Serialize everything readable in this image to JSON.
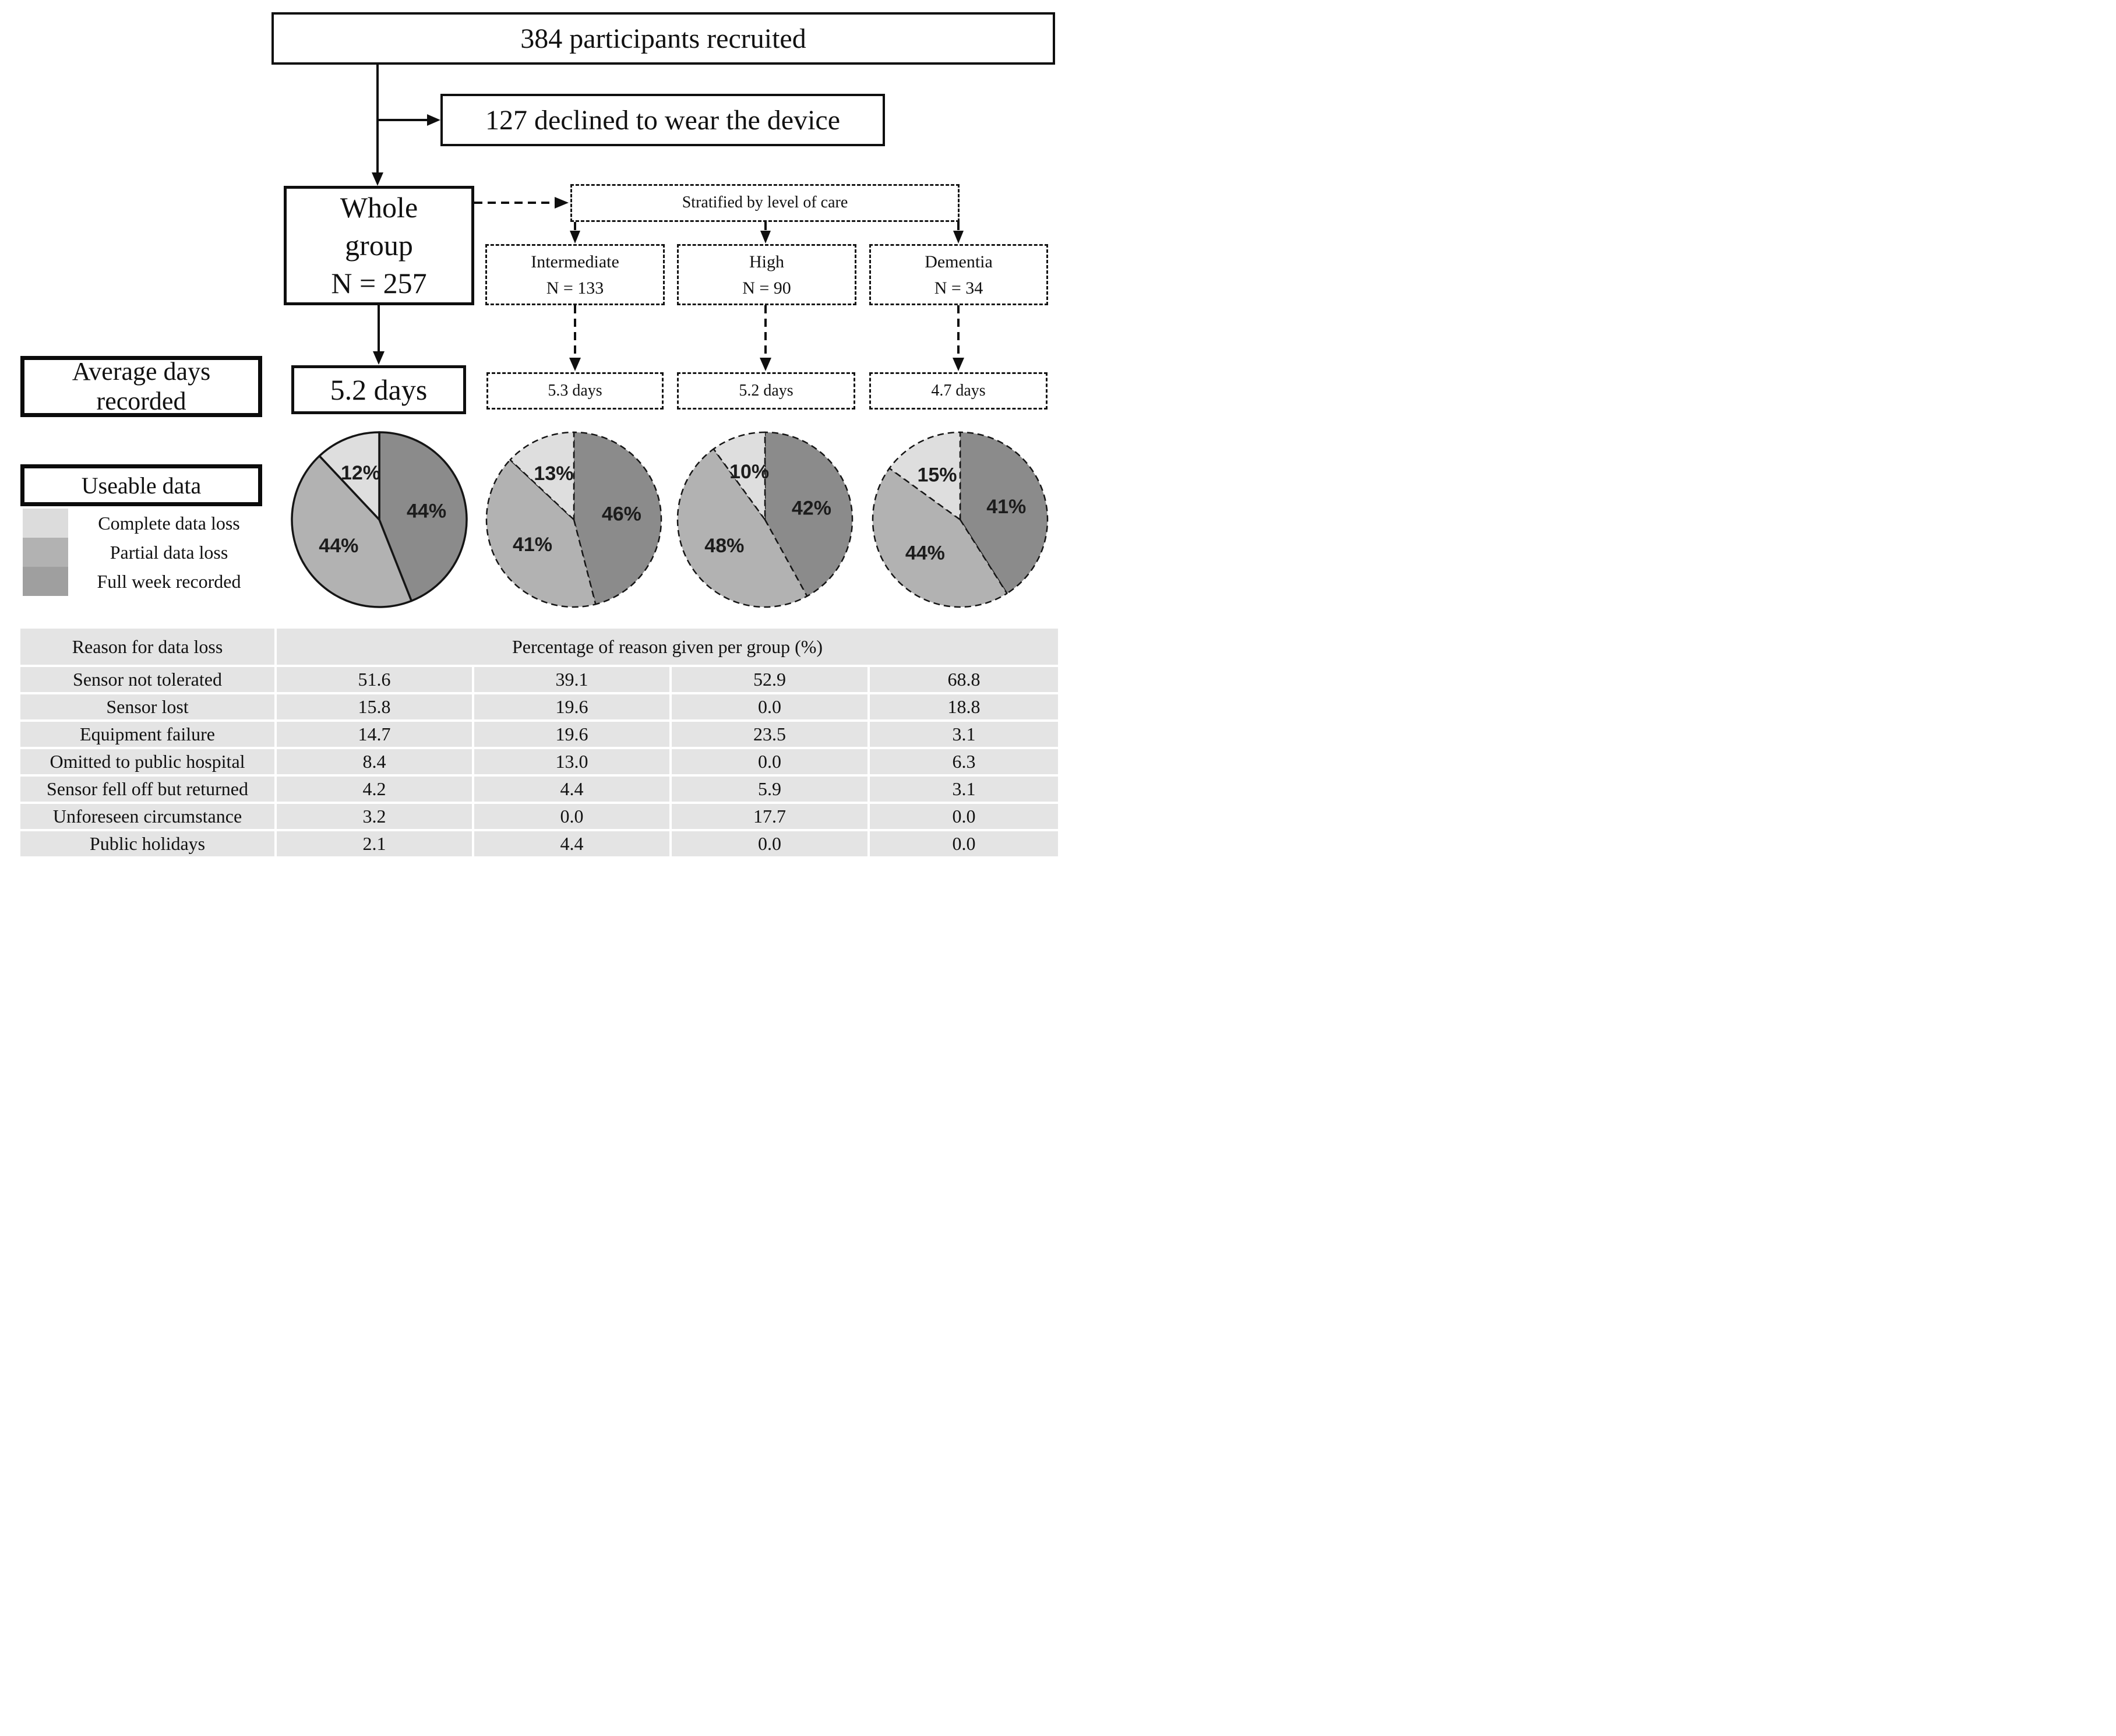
{
  "flowchart": {
    "recruited": "384 participants recruited",
    "declined": "127 declined to wear the device",
    "whole_group_lines": [
      "Whole",
      "group",
      "N = 257"
    ],
    "stratified_label": "Stratified by level of care",
    "groups": [
      {
        "name": "Intermediate",
        "n_label": "N = 133"
      },
      {
        "name": "High",
        "n_label": "N = 90"
      },
      {
        "name": "Dementia",
        "n_label": "N = 34"
      }
    ],
    "average_days_label_lines": [
      "Average days",
      "recorded"
    ],
    "average_days": [
      "5.2 days",
      "5.3 days",
      "5.2 days",
      "4.7 days"
    ],
    "useable_data_label": "Useable data"
  },
  "legend": {
    "items": [
      {
        "label": "Complete data loss",
        "color": "#dcdcdc"
      },
      {
        "label": "Partial data loss",
        "color": "#b2b2b2"
      },
      {
        "label": "Full week recorded",
        "color": "#9f9f9f"
      }
    ]
  },
  "chart_data": [
    {
      "type": "pie",
      "title": "Whole group",
      "border_style": "solid",
      "categories": [
        "Full week recorded",
        "Partial data loss",
        "Complete data loss"
      ],
      "values": [
        44,
        44,
        12
      ],
      "value_labels": [
        "44%",
        "44%",
        "12%"
      ],
      "colors": [
        "#8b8b8b",
        "#b2b2b2",
        "#dedede"
      ],
      "start_angle": 0,
      "direction": "clockwise",
      "legend_position": "left"
    },
    {
      "type": "pie",
      "title": "Intermediate",
      "border_style": "dashed",
      "categories": [
        "Full week recorded",
        "Partial data loss",
        "Complete data loss"
      ],
      "values": [
        46,
        41,
        13
      ],
      "value_labels": [
        "46%",
        "41%",
        "13%"
      ],
      "colors": [
        "#8b8b8b",
        "#b2b2b2",
        "#dedede"
      ],
      "start_angle": 0,
      "direction": "clockwise"
    },
    {
      "type": "pie",
      "title": "High",
      "border_style": "dashed",
      "categories": [
        "Full week recorded",
        "Partial data loss",
        "Complete data loss"
      ],
      "values": [
        42,
        48,
        10
      ],
      "value_labels": [
        "42%",
        "48%",
        "10%"
      ],
      "colors": [
        "#8b8b8b",
        "#b2b2b2",
        "#dedede"
      ],
      "start_angle": 0,
      "direction": "clockwise"
    },
    {
      "type": "pie",
      "title": "Dementia",
      "border_style": "dashed",
      "categories": [
        "Full week recorded",
        "Partial data loss",
        "Complete data loss"
      ],
      "values": [
        41,
        44,
        15
      ],
      "value_labels": [
        "41%",
        "44%",
        "15%"
      ],
      "colors": [
        "#8b8b8b",
        "#b2b2b2",
        "#dedede"
      ],
      "start_angle": 0,
      "direction": "clockwise"
    }
  ],
  "table": {
    "reason_header": "Reason for data loss",
    "values_header": "Percentage of reason given per group (%)",
    "rows": [
      {
        "reason": "Sensor not tolerated",
        "values": [
          "51.6",
          "39.1",
          "52.9",
          "68.8"
        ]
      },
      {
        "reason": "Sensor lost",
        "values": [
          "15.8",
          "19.6",
          "0.0",
          "18.8"
        ]
      },
      {
        "reason": "Equipment failure",
        "values": [
          "14.7",
          "19.6",
          "23.5",
          "3.1"
        ]
      },
      {
        "reason": "Omitted to public hospital",
        "values": [
          "8.4",
          "13.0",
          "0.0",
          "6.3"
        ]
      },
      {
        "reason": "Sensor fell off but returned",
        "values": [
          "4.2",
          "4.4",
          "5.9",
          "3.1"
        ]
      },
      {
        "reason": "Unforeseen circumstance",
        "values": [
          "3.2",
          "0.0",
          "17.7",
          "0.0"
        ]
      },
      {
        "reason": "Public holidays",
        "values": [
          "2.1",
          "4.4",
          "0.0",
          "0.0"
        ]
      }
    ]
  }
}
